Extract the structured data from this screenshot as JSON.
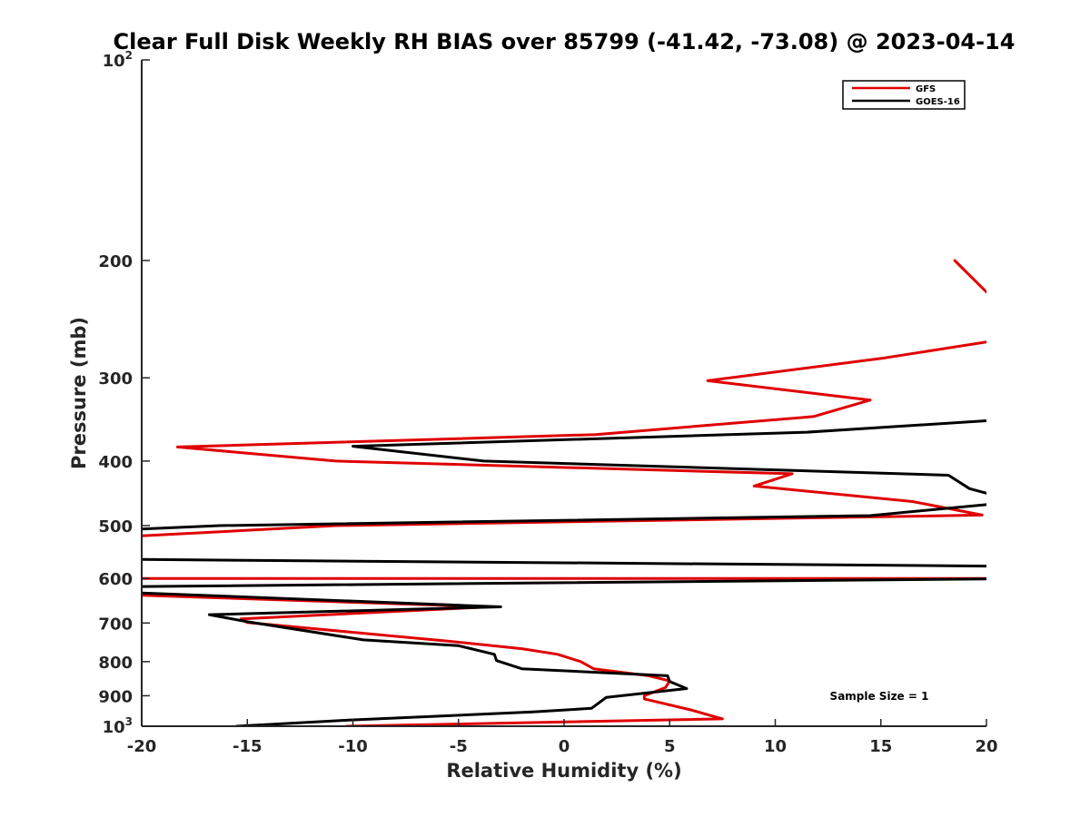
{
  "chart_data": {
    "type": "line",
    "title": "Clear Full Disk Weekly RH BIAS over 85799 (-41.42, -73.08) @ 2023-04-14",
    "xlabel": "Relative Humidity (%)",
    "ylabel": "Pressure (mb)",
    "xlim": [
      -20,
      20
    ],
    "ylim": [
      100,
      1000
    ],
    "y_scale": "log",
    "y_reversed": true,
    "grid": false,
    "legend_position": "top-right",
    "x_ticks": [
      -20,
      -15,
      -10,
      -5,
      0,
      5,
      10,
      15,
      20
    ],
    "x_tick_labels": [
      "-20",
      "-15",
      "-10",
      "-5",
      "0",
      "5",
      "10",
      "15",
      "20"
    ],
    "y_ticks": [
      {
        "value": 100,
        "label": "10",
        "exp": "2"
      },
      {
        "value": 200,
        "label": "200"
      },
      {
        "value": 300,
        "label": "300"
      },
      {
        "value": 400,
        "label": "400"
      },
      {
        "value": 500,
        "label": "500"
      },
      {
        "value": 600,
        "label": "600"
      },
      {
        "value": 700,
        "label": "700"
      },
      {
        "value": 800,
        "label": "800"
      },
      {
        "value": 900,
        "label": "900"
      },
      {
        "value": 1000,
        "label": "10",
        "exp": "3"
      }
    ],
    "annotation": "Sample Size = 1",
    "series": [
      {
        "name": "GFS",
        "color": "#e00000",
        "segments": [
          [
            [
              18.5,
              200
            ],
            [
              20,
              223
            ]
          ],
          [
            [
              20,
              265
            ],
            [
              15.2,
              280
            ],
            [
              6.8,
              303
            ],
            [
              14.5,
              324
            ],
            [
              11.8,
              343
            ],
            [
              1.5,
              365
            ],
            [
              -18.3,
              381
            ],
            [
              -10.8,
              400
            ],
            [
              10.8,
              418
            ],
            [
              9.0,
              436
            ],
            [
              16.5,
              460
            ],
            [
              19.8,
              482
            ],
            [
              -10.8,
              500
            ],
            [
              -20,
              518
            ]
          ],
          [
            [
              -20,
              600
            ],
            [
              20,
              600
            ]
          ],
          [
            [
              -20,
              636
            ],
            [
              -3.5,
              662
            ],
            [
              -15.3,
              690
            ],
            [
              -15.0,
              699
            ],
            [
              -5.5,
              745
            ],
            [
              -2.0,
              765
            ],
            [
              -0.3,
              780
            ],
            [
              0.8,
              800
            ],
            [
              1.4,
              820
            ],
            [
              4.0,
              840
            ],
            [
              5.0,
              855
            ],
            [
              4.8,
              875
            ],
            [
              3.8,
              900
            ],
            [
              3.8,
              910
            ],
            [
              6.0,
              945
            ],
            [
              7.5,
              975
            ],
            [
              -10.3,
              1000
            ]
          ]
        ]
      },
      {
        "name": "GOES-16",
        "color": "#000000",
        "segments": [
          [
            [
              20,
              348
            ],
            [
              11.5,
              362
            ],
            [
              -10.0,
              380
            ],
            [
              -3.8,
              400
            ],
            [
              18.2,
              420
            ],
            [
              19.2,
              440
            ],
            [
              20,
              447
            ]
          ],
          [
            [
              20,
              465
            ],
            [
              14.5,
              483
            ],
            [
              -16.3,
              500
            ],
            [
              -20,
              506
            ]
          ],
          [
            [
              -20,
              562
            ],
            [
              20,
              575
            ]
          ],
          [
            [
              20,
              601
            ],
            [
              -20,
              617
            ]
          ],
          [
            [
              -20,
              631
            ],
            [
              -3.0,
              662
            ],
            [
              -16.8,
              680
            ],
            [
              -15.0,
              697
            ],
            [
              -9.5,
              742
            ],
            [
              -5.0,
              757
            ],
            [
              -3.3,
              780
            ],
            [
              -3.2,
              797
            ],
            [
              -2.0,
              820
            ],
            [
              4.9,
              840
            ],
            [
              5.0,
              857
            ],
            [
              5.8,
              878
            ],
            [
              2.0,
              905
            ],
            [
              1.3,
              940
            ],
            [
              -1.5,
              952
            ],
            [
              -10.5,
              980
            ],
            [
              -15.5,
              1000
            ]
          ]
        ]
      }
    ]
  }
}
